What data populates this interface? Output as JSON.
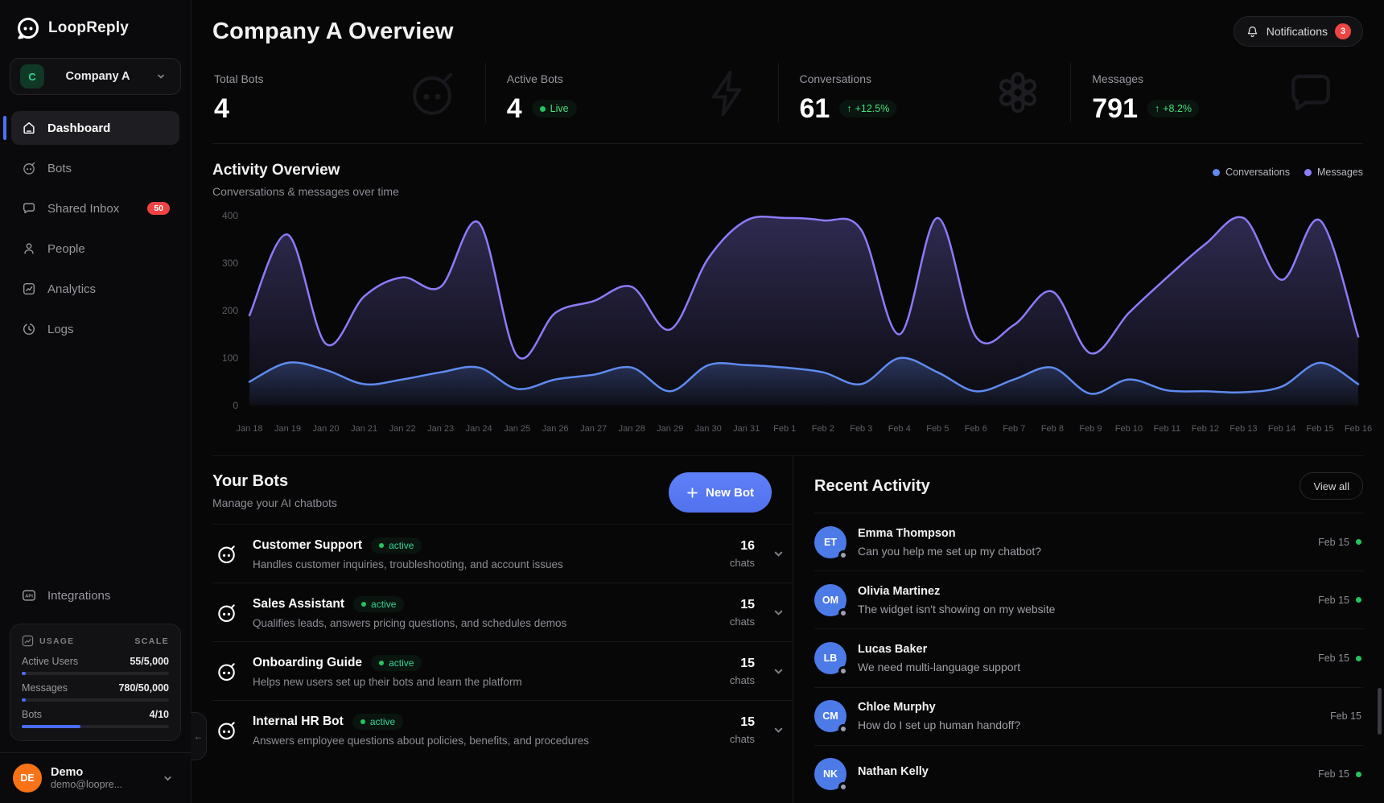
{
  "app": {
    "name": "LoopReply"
  },
  "sidebar": {
    "workspace": {
      "initial": "C",
      "name": "Company A"
    },
    "nav": [
      {
        "label": "Dashboard"
      },
      {
        "label": "Bots"
      },
      {
        "label": "Shared Inbox",
        "badge": "50"
      },
      {
        "label": "People"
      },
      {
        "label": "Analytics"
      },
      {
        "label": "Logs"
      }
    ],
    "integrations_label": "Integrations",
    "usage": {
      "title": "USAGE",
      "plan": "SCALE",
      "rows": [
        {
          "label": "Active Users",
          "value": "55/5,000",
          "pct": 1.1
        },
        {
          "label": "Messages",
          "value": "780/50,000",
          "pct": 1.6
        },
        {
          "label": "Bots",
          "value": "4/10",
          "pct": 40
        }
      ]
    },
    "user": {
      "initials": "DE",
      "name": "Demo",
      "email": "demo@loopre..."
    }
  },
  "header": {
    "title": "Company A Overview",
    "notifications_label": "Notifications",
    "notifications_count": "3"
  },
  "stats": [
    {
      "label": "Total Bots",
      "value": "4"
    },
    {
      "label": "Active Bots",
      "value": "4",
      "badge": "Live"
    },
    {
      "label": "Conversations",
      "value": "61",
      "badge": "+12.5%"
    },
    {
      "label": "Messages",
      "value": "791",
      "badge": "+8.2%"
    }
  ],
  "activity": {
    "title": "Activity Overview",
    "subtitle": "Conversations & messages over time",
    "legend": [
      {
        "label": "Conversations",
        "color": "#5e8bf0"
      },
      {
        "label": "Messages",
        "color": "#8b7cf8"
      }
    ]
  },
  "chart_data": {
    "type": "area",
    "title": "Activity Overview",
    "x": [
      "Jan 18",
      "Jan 19",
      "Jan 20",
      "Jan 21",
      "Jan 22",
      "Jan 23",
      "Jan 24",
      "Jan 25",
      "Jan 26",
      "Jan 27",
      "Jan 28",
      "Jan 29",
      "Jan 30",
      "Jan 31",
      "Feb 1",
      "Feb 2",
      "Feb 3",
      "Feb 4",
      "Feb 5",
      "Feb 6",
      "Feb 7",
      "Feb 8",
      "Feb 9",
      "Feb 10",
      "Feb 11",
      "Feb 12",
      "Feb 13",
      "Feb 14",
      "Feb 15",
      "Feb 16"
    ],
    "series": [
      {
        "name": "Conversations",
        "color": "#5e8bf0",
        "values": [
          50,
          90,
          75,
          45,
          55,
          70,
          80,
          35,
          55,
          65,
          80,
          30,
          85,
          85,
          80,
          70,
          45,
          100,
          70,
          30,
          55,
          80,
          25,
          55,
          32,
          30,
          28,
          40,
          90,
          45
        ]
      },
      {
        "name": "Messages",
        "color": "#8b7cf8",
        "values": [
          190,
          360,
          130,
          230,
          270,
          250,
          385,
          105,
          195,
          220,
          250,
          160,
          310,
          390,
          395,
          390,
          370,
          150,
          395,
          145,
          170,
          240,
          110,
          195,
          270,
          340,
          395,
          265,
          390,
          145
        ]
      }
    ],
    "ylim": [
      0,
      400
    ],
    "y_ticks": [
      0,
      100,
      200,
      300,
      400
    ],
    "grid": false,
    "legend_position": "top-right"
  },
  "bots_section": {
    "title": "Your Bots",
    "subtitle": "Manage your AI chatbots",
    "new_bot_label": "New Bot",
    "chats_unit": "chats",
    "items": [
      {
        "name": "Customer Support",
        "status": "active",
        "description": "Handles customer inquiries, troubleshooting, and account issues",
        "chats": "16"
      },
      {
        "name": "Sales Assistant",
        "status": "active",
        "description": "Qualifies leads, answers pricing questions, and schedules demos",
        "chats": "15"
      },
      {
        "name": "Onboarding Guide",
        "status": "active",
        "description": "Helps new users set up their bots and learn the platform",
        "chats": "15"
      },
      {
        "name": "Internal HR Bot",
        "status": "active",
        "description": "Answers employee questions about policies, benefits, and procedures",
        "chats": "15"
      }
    ]
  },
  "recent": {
    "title": "Recent Activity",
    "view_all_label": "View all",
    "items": [
      {
        "initials": "ET",
        "name": "Emma Thompson",
        "message": "Can you help me set up my chatbot?",
        "date": "Feb 15"
      },
      {
        "initials": "OM",
        "name": "Olivia Martinez",
        "message": "The widget isn't showing on my website",
        "date": "Feb 15"
      },
      {
        "initials": "LB",
        "name": "Lucas Baker",
        "message": "We need multi-language support",
        "date": "Feb 15"
      },
      {
        "initials": "CM",
        "name": "Chloe Murphy",
        "message": "How do I set up human handoff?",
        "date": "Feb 15"
      },
      {
        "initials": "NK",
        "name": "Nathan Kelly",
        "message": "",
        "date": "Feb 15"
      }
    ]
  }
}
